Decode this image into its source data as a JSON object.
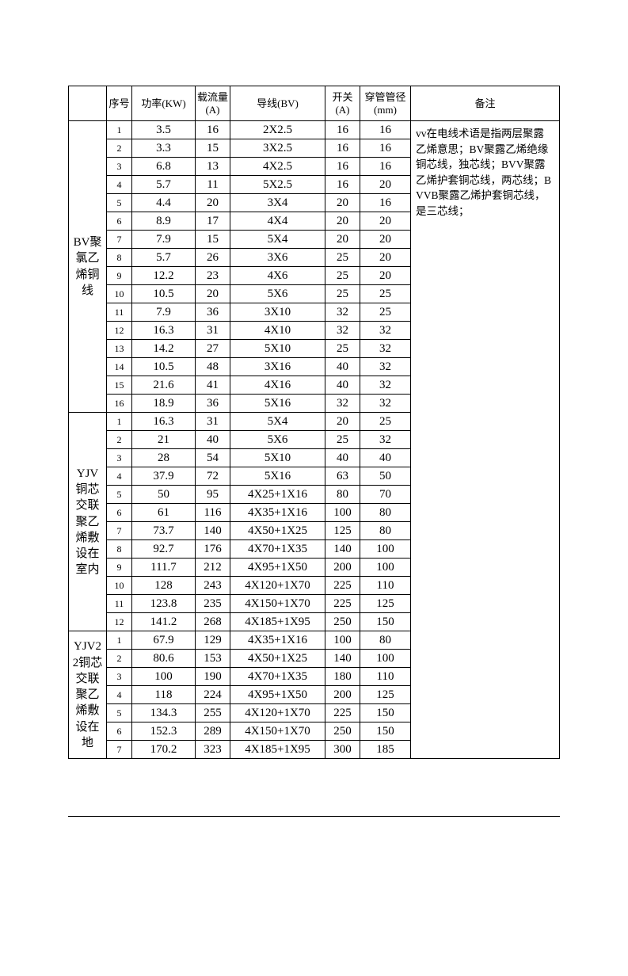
{
  "headers": {
    "type": "",
    "seq": "序号",
    "power": "功率(KW)",
    "ampacity": "载流量(A)",
    "wire": "导线(BV)",
    "switch": "开关(A)",
    "pipe": "穿管管径(mm)",
    "note": "备注"
  },
  "sections": [
    {
      "label": "BV聚氯乙烯铜线",
      "note": "vv在电线术语是指两层聚露乙烯意思；BV聚露乙烯绝缘铜芯线，独芯线；BVV聚露乙烯护套铜芯线，两芯线；BVVB聚露乙烯护套铜芯线，是三芯线；",
      "rows": [
        {
          "n": "1",
          "pw": "3.5",
          "amp": "16",
          "wire": "2X2.5",
          "sw": "16",
          "pipe": "16"
        },
        {
          "n": "2",
          "pw": "3.3",
          "amp": "15",
          "wire": "3X2.5",
          "sw": "16",
          "pipe": "16"
        },
        {
          "n": "3",
          "pw": "6.8",
          "amp": "13",
          "wire": "4X2.5",
          "sw": "16",
          "pipe": "16"
        },
        {
          "n": "4",
          "pw": "5.7",
          "amp": "11",
          "wire": "5X2.5",
          "sw": "16",
          "pipe": "20"
        },
        {
          "n": "5",
          "pw": "4.4",
          "amp": "20",
          "wire": "3X4",
          "sw": "20",
          "pipe": "16"
        },
        {
          "n": "6",
          "pw": "8.9",
          "amp": "17",
          "wire": "4X4",
          "sw": "20",
          "pipe": "20"
        },
        {
          "n": "7",
          "pw": "7.9",
          "amp": "15",
          "wire": "5X4",
          "sw": "20",
          "pipe": "20"
        },
        {
          "n": "8",
          "pw": "5.7",
          "amp": "26",
          "wire": "3X6",
          "sw": "25",
          "pipe": "20"
        },
        {
          "n": "9",
          "pw": "12.2",
          "amp": "23",
          "wire": "4X6",
          "sw": "25",
          "pipe": "20"
        },
        {
          "n": "10",
          "pw": "10.5",
          "amp": "20",
          "wire": "5X6",
          "sw": "25",
          "pipe": "25"
        },
        {
          "n": "11",
          "pw": "7.9",
          "amp": "36",
          "wire": "3X10",
          "sw": "32",
          "pipe": "25"
        },
        {
          "n": "12",
          "pw": "16.3",
          "amp": "31",
          "wire": "4X10",
          "sw": "32",
          "pipe": "32"
        },
        {
          "n": "13",
          "pw": "14.2",
          "amp": "27",
          "wire": "5X10",
          "sw": "25",
          "pipe": "32"
        },
        {
          "n": "14",
          "pw": "10.5",
          "amp": "48",
          "wire": "3X16",
          "sw": "40",
          "pipe": "32"
        },
        {
          "n": "15",
          "pw": "21.6",
          "amp": "41",
          "wire": "4X16",
          "sw": "40",
          "pipe": "32"
        },
        {
          "n": "16",
          "pw": "18.9",
          "amp": "36",
          "wire": "5X16",
          "sw": "32",
          "pipe": "32"
        }
      ]
    },
    {
      "label": "YJV铜芯交联聚乙烯敷设在室内",
      "note": "",
      "rows": [
        {
          "n": "1",
          "pw": "16.3",
          "amp": "31",
          "wire": "5X4",
          "sw": "20",
          "pipe": "25"
        },
        {
          "n": "2",
          "pw": "21",
          "amp": "40",
          "wire": "5X6",
          "sw": "25",
          "pipe": "32"
        },
        {
          "n": "3",
          "pw": "28",
          "amp": "54",
          "wire": "5X10",
          "sw": "40",
          "pipe": "40"
        },
        {
          "n": "4",
          "pw": "37.9",
          "amp": "72",
          "wire": "5X16",
          "sw": "63",
          "pipe": "50"
        },
        {
          "n": "5",
          "pw": "50",
          "amp": "95",
          "wire": "4X25+1X16",
          "sw": "80",
          "pipe": "70"
        },
        {
          "n": "6",
          "pw": "61",
          "amp": "116",
          "wire": "4X35+1X16",
          "sw": "100",
          "pipe": "80"
        },
        {
          "n": "7",
          "pw": "73.7",
          "amp": "140",
          "wire": "4X50+1X25",
          "sw": "125",
          "pipe": "80"
        },
        {
          "n": "8",
          "pw": "92.7",
          "amp": "176",
          "wire": "4X70+1X35",
          "sw": "140",
          "pipe": "100"
        },
        {
          "n": "9",
          "pw": "111.7",
          "amp": "212",
          "wire": "4X95+1X50",
          "sw": "200",
          "pipe": "100"
        },
        {
          "n": "10",
          "pw": "128",
          "amp": "243",
          "wire": "4X120+1X70",
          "sw": "225",
          "pipe": "110"
        },
        {
          "n": "11",
          "pw": "123.8",
          "amp": "235",
          "wire": "4X150+1X70",
          "sw": "225",
          "pipe": "125"
        },
        {
          "n": "12",
          "pw": "141.2",
          "amp": "268",
          "wire": "4X185+1X95",
          "sw": "250",
          "pipe": "150"
        }
      ]
    },
    {
      "label": "YJV22铜芯交联聚乙烯敷设在地",
      "note": "",
      "rows": [
        {
          "n": "1",
          "pw": "67.9",
          "amp": "129",
          "wire": "4X35+1X16",
          "sw": "100",
          "pipe": "80"
        },
        {
          "n": "2",
          "pw": "80.6",
          "amp": "153",
          "wire": "4X50+1X25",
          "sw": "140",
          "pipe": "100"
        },
        {
          "n": "3",
          "pw": "100",
          "amp": "190",
          "wire": "4X70+1X35",
          "sw": "180",
          "pipe": "110"
        },
        {
          "n": "4",
          "pw": "118",
          "amp": "224",
          "wire": "4X95+1X50",
          "sw": "200",
          "pipe": "125"
        },
        {
          "n": "5",
          "pw": "134.3",
          "amp": "255",
          "wire": "4X120+1X70",
          "sw": "225",
          "pipe": "150"
        },
        {
          "n": "6",
          "pw": "152.3",
          "amp": "289",
          "wire": "4X150+1X70",
          "sw": "250",
          "pipe": "150"
        },
        {
          "n": "7",
          "pw": "170.2",
          "amp": "323",
          "wire": "4X185+1X95",
          "sw": "300",
          "pipe": "185"
        }
      ]
    }
  ]
}
